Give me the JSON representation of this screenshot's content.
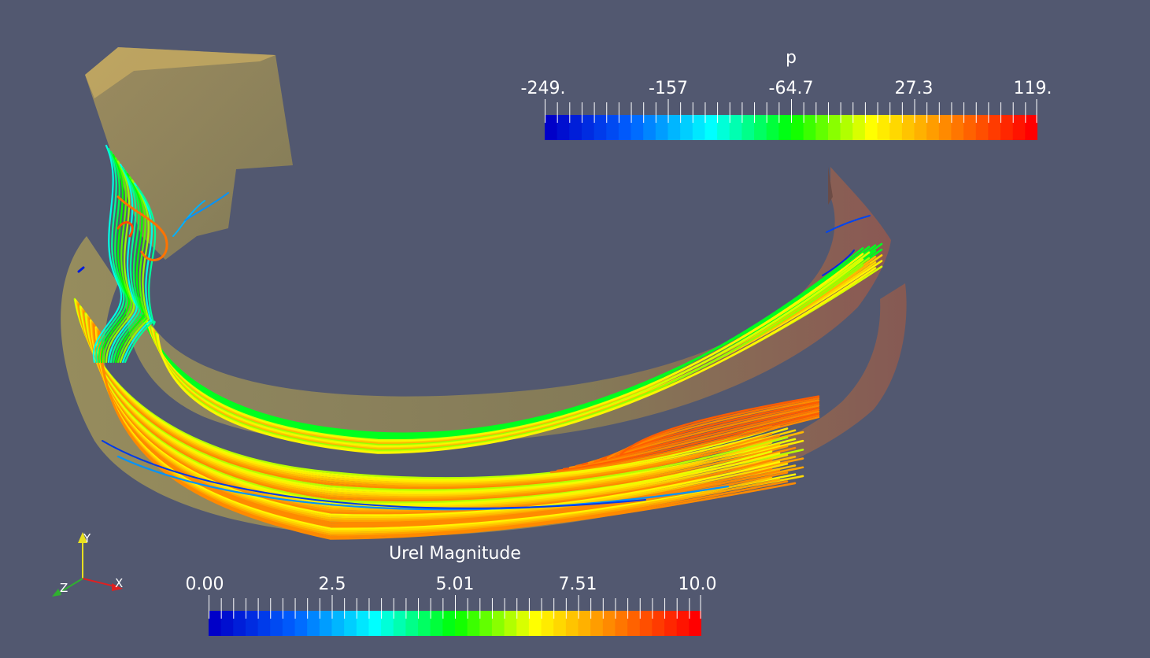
{
  "scalar_bars": {
    "pressure": {
      "title": "p",
      "ticks": [
        "-249.",
        "-157",
        "-64.7",
        "27.3",
        "119."
      ],
      "colormap": "jet"
    },
    "velocity": {
      "title": "Urel Magnitude",
      "ticks": [
        "0.00",
        "2.5",
        "5.01",
        "7.51",
        "10.0"
      ],
      "colormap": "jet"
    }
  },
  "orientation_axes": {
    "x_label": "X",
    "y_label": "Y",
    "z_label": "Z",
    "x_color": "#e02020",
    "y_color": "#e8e020",
    "z_color": "#30b030"
  },
  "colors": {
    "background": "#525870",
    "colormap_stops": [
      "#0000c8",
      "#0060ff",
      "#00ffff",
      "#00ff00",
      "#ffff00",
      "#ff8000",
      "#ff0000"
    ]
  }
}
